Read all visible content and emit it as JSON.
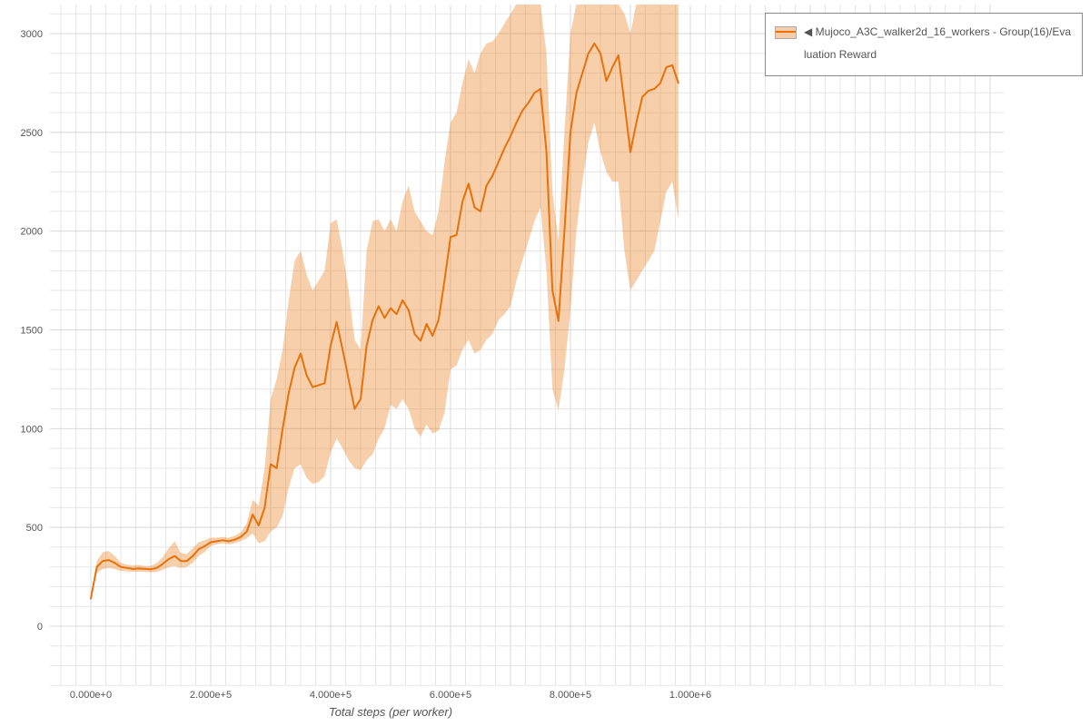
{
  "legend": {
    "marker": "◀",
    "label": "Mujoco_A3C_walker2d_16_workers - Group(16)/Evaluation Reward"
  },
  "colors": {
    "line": "#e8710a",
    "band_fill": "#e8710a",
    "band_opacity": 0.34,
    "grid_minor": "#e7e7e7",
    "grid_major": "#d8d8d8",
    "tick_label": "#545454",
    "background": "#ffffff",
    "legend_border": "#8a8a8a"
  },
  "chart_data": {
    "type": "line",
    "title": "",
    "xlabel": "Total steps (per worker)",
    "ylabel": "",
    "grid": true,
    "legend_position": "top-right",
    "xlim": [
      0,
      1000000
    ],
    "ylim": [
      -300,
      3150
    ],
    "x_ticks": [
      {
        "value": 0,
        "label": "0.000e+0"
      },
      {
        "value": 200000,
        "label": "2.000e+5"
      },
      {
        "value": 400000,
        "label": "4.000e+5"
      },
      {
        "value": 600000,
        "label": "6.000e+5"
      },
      {
        "value": 800000,
        "label": "8.000e+5"
      },
      {
        "value": 1000000,
        "label": "1.000e+6"
      }
    ],
    "y_ticks": [
      {
        "value": 0,
        "label": "0"
      },
      {
        "value": 500,
        "label": "500"
      },
      {
        "value": 1000,
        "label": "1000"
      },
      {
        "value": 1500,
        "label": "1500"
      },
      {
        "value": 2000,
        "label": "2000"
      },
      {
        "value": 2500,
        "label": "2500"
      },
      {
        "value": 3000,
        "label": "3000"
      }
    ],
    "series": [
      {
        "name": "Mujoco_A3C_walker2d_16_workers - Group(16)/Evaluation Reward",
        "x": [
          0,
          10000,
          20000,
          30000,
          40000,
          50000,
          60000,
          70000,
          80000,
          90000,
          100000,
          110000,
          120000,
          130000,
          140000,
          150000,
          160000,
          170000,
          180000,
          190000,
          200000,
          210000,
          220000,
          230000,
          240000,
          250000,
          260000,
          270000,
          280000,
          290000,
          300000,
          310000,
          320000,
          330000,
          340000,
          350000,
          360000,
          370000,
          380000,
          390000,
          400000,
          410000,
          420000,
          430000,
          440000,
          450000,
          460000,
          470000,
          480000,
          490000,
          500000,
          510000,
          520000,
          530000,
          540000,
          550000,
          560000,
          570000,
          580000,
          590000,
          600000,
          610000,
          620000,
          630000,
          640000,
          650000,
          660000,
          670000,
          680000,
          690000,
          700000,
          710000,
          720000,
          730000,
          740000,
          750000,
          760000,
          770000,
          780000,
          790000,
          800000,
          810000,
          820000,
          830000,
          840000,
          850000,
          860000,
          870000,
          880000,
          890000,
          900000,
          910000,
          920000,
          930000,
          940000,
          950000,
          960000,
          970000,
          980000
        ],
        "mean": [
          140,
          300,
          330,
          335,
          320,
          300,
          295,
          290,
          292,
          290,
          288,
          295,
          315,
          340,
          355,
          330,
          330,
          355,
          390,
          405,
          425,
          430,
          435,
          430,
          438,
          452,
          478,
          565,
          510,
          600,
          820,
          800,
          1000,
          1180,
          1310,
          1380,
          1270,
          1210,
          1220,
          1230,
          1420,
          1540,
          1400,
          1250,
          1100,
          1150,
          1420,
          1550,
          1620,
          1560,
          1610,
          1580,
          1650,
          1600,
          1480,
          1445,
          1530,
          1470,
          1550,
          1750,
          1970,
          1980,
          2150,
          2240,
          2120,
          2100,
          2230,
          2280,
          2350,
          2420,
          2480,
          2550,
          2610,
          2650,
          2700,
          2720,
          2400,
          1700,
          1545,
          2000,
          2500,
          2700,
          2800,
          2900,
          2950,
          2900,
          2760,
          2830,
          2890,
          2650,
          2400,
          2550,
          2680,
          2710,
          2720,
          2750,
          2830,
          2840,
          2750
        ],
        "lower": [
          135,
          270,
          290,
          295,
          290,
          280,
          278,
          275,
          276,
          275,
          272,
          275,
          285,
          300,
          305,
          295,
          300,
          320,
          355,
          375,
          405,
          415,
          420,
          415,
          420,
          430,
          445,
          470,
          420,
          430,
          480,
          500,
          560,
          700,
          800,
          820,
          750,
          720,
          730,
          760,
          880,
          950,
          900,
          840,
          800,
          790,
          840,
          870,
          950,
          1000,
          1120,
          1100,
          1150,
          1100,
          1000,
          960,
          1020,
          975,
          990,
          1080,
          1300,
          1320,
          1400,
          1450,
          1380,
          1400,
          1450,
          1480,
          1550,
          1580,
          1620,
          1750,
          1850,
          1950,
          2050,
          2120,
          1800,
          1200,
          1090,
          1300,
          1600,
          2000,
          2250,
          2450,
          2550,
          2400,
          2300,
          2250,
          2250,
          1900,
          1700,
          1750,
          1800,
          1850,
          1900,
          2050,
          2200,
          2250,
          2060
        ],
        "upper": [
          145,
          330,
          375,
          380,
          355,
          320,
          312,
          308,
          310,
          305,
          305,
          320,
          350,
          395,
          430,
          370,
          365,
          395,
          425,
          435,
          448,
          448,
          452,
          448,
          458,
          475,
          520,
          640,
          610,
          800,
          1150,
          1250,
          1400,
          1650,
          1850,
          1900,
          1780,
          1700,
          1750,
          1800,
          2040,
          2060,
          1900,
          1700,
          1450,
          1400,
          1900,
          2050,
          2060,
          2000,
          2060,
          2000,
          2150,
          2230,
          2100,
          2050,
          2000,
          1980,
          2100,
          2350,
          2550,
          2600,
          2750,
          2870,
          2800,
          2900,
          2950,
          2960,
          3000,
          3050,
          3100,
          3150,
          3150,
          3150,
          3150,
          3150,
          2900,
          2200,
          1950,
          2500,
          3000,
          3150,
          3150,
          3150,
          3150,
          3150,
          3150,
          3150,
          3150,
          3100,
          3000,
          3150,
          3150,
          3150,
          3150,
          3150,
          3150,
          3150,
          3150
        ]
      }
    ]
  }
}
